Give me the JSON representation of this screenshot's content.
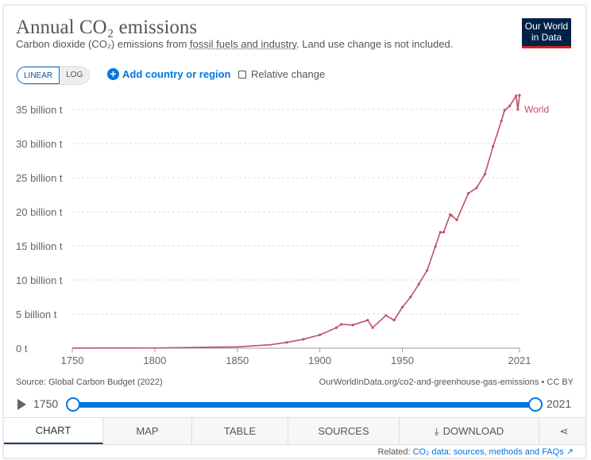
{
  "header": {
    "title": "Annual CO₂ emissions",
    "subtitle_pre": "Carbon dioxide (CO₂) emissions from ",
    "subtitle_link": "fossil fuels and industry",
    "subtitle_post": ". Land use change is not included.",
    "logo_line1": "Our World",
    "logo_line2": "in Data"
  },
  "controls": {
    "linear": "LINEAR",
    "log": "LOG",
    "add_country": "Add country or region",
    "relative_change": "Relative change"
  },
  "footer": {
    "source": "Source: Global Carbon Budget (2022)",
    "url": "OurWorldInData.org/co2-and-greenhouse-gas-emissions • CC BY"
  },
  "timeline": {
    "start": "1750",
    "end": "2021"
  },
  "tabs": [
    "CHART",
    "MAP",
    "TABLE",
    "SOURCES",
    "DOWNLOAD"
  ],
  "related": {
    "label": "Related: ",
    "link": "CO₂ data: sources, methods and FAQs"
  },
  "colors": {
    "series": "#c15065",
    "accent": "#0076e0"
  },
  "chart_data": {
    "type": "line",
    "title": "Annual CO₂ emissions",
    "xlabel": "",
    "ylabel": "",
    "xlim": [
      1750,
      2021
    ],
    "ylim": [
      0,
      35
    ],
    "x_ticks": [
      "1750",
      "1800",
      "1850",
      "1900",
      "1950",
      "2021"
    ],
    "y_ticks": [
      "0 t",
      "5 billion t",
      "10 billion t",
      "15 billion t",
      "20 billion t",
      "25 billion t",
      "30 billion t",
      "35 billion t"
    ],
    "series": [
      {
        "name": "World",
        "x": [
          1750,
          1800,
          1850,
          1870,
          1880,
          1890,
          1900,
          1910,
          1913,
          1920,
          1929,
          1932,
          1940,
          1945,
          1950,
          1955,
          1960,
          1965,
          1970,
          1973,
          1975,
          1979,
          1980,
          1983,
          1990,
          1995,
          2000,
          2005,
          2010,
          2012,
          2015,
          2019,
          2020,
          2021
        ],
        "y": [
          0.01,
          0.03,
          0.2,
          0.5,
          0.85,
          1.3,
          1.95,
          3.0,
          3.5,
          3.4,
          4.1,
          3.0,
          4.8,
          4.1,
          6.0,
          7.5,
          9.4,
          11.4,
          14.9,
          17.0,
          17.0,
          19.6,
          19.4,
          18.8,
          22.7,
          23.5,
          25.5,
          29.6,
          33.3,
          34.9,
          35.5,
          37.0,
          35.0,
          37.1
        ]
      }
    ],
    "grid": true,
    "legend": "right end label"
  }
}
